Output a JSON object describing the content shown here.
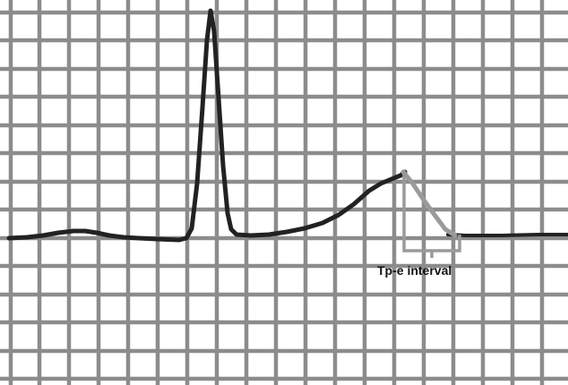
{
  "figure": {
    "annotation_label": "Tp-e interval",
    "colors": {
      "background": "#ffffff",
      "grid": "#8c8c8c",
      "trace": "#222222",
      "highlight": "#9a9a9a",
      "label": "#111111"
    }
  }
}
